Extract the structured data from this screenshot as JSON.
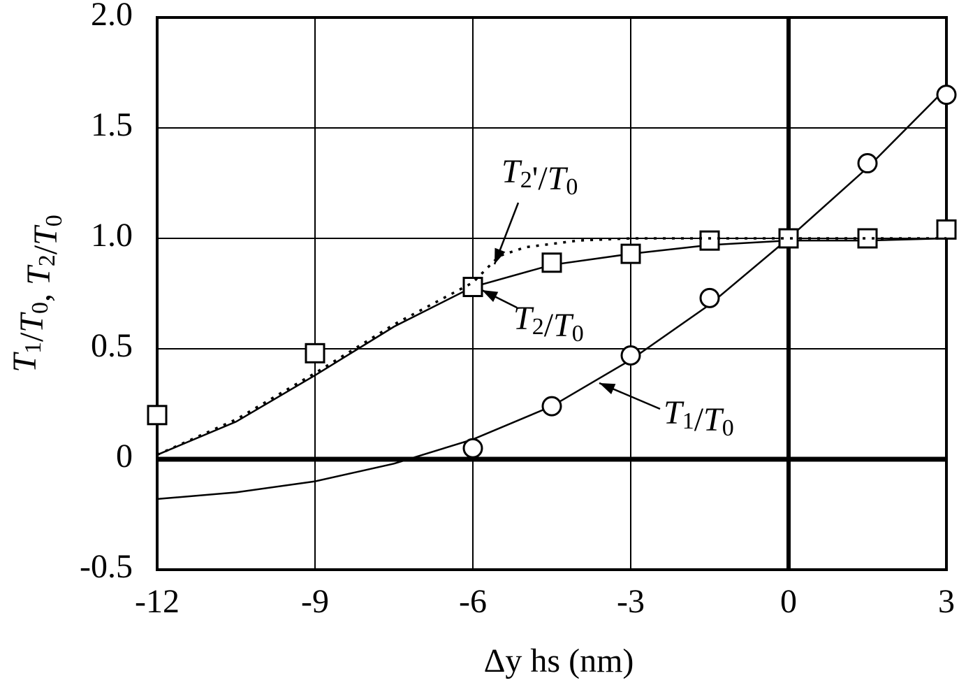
{
  "chart_data": {
    "type": "line",
    "x_label": "Δy hs (nm)",
    "y_label": "T1/T0, T2/T0",
    "xlim": [
      -12,
      3
    ],
    "xticks": [
      -12,
      -9,
      -6,
      -3,
      0,
      3
    ],
    "ylim": [
      -0.5,
      2
    ],
    "yticks": [
      -0.5,
      0,
      0.5,
      {
        "value": 1,
        "label": "1.0"
      },
      1.5,
      {
        "value": 2,
        "label": "2.0"
      }
    ],
    "grid": true,
    "series": [
      {
        "name": "T1/T0",
        "color": "#000000",
        "marker": "circle",
        "x": [
          -6,
          -4.5,
          -3,
          -1.5,
          0,
          1.5,
          3
        ],
        "values": [
          0.05,
          0.24,
          0.47,
          0.73,
          1.0,
          1.34,
          1.65
        ],
        "fit_x": [
          -12,
          -10.5,
          -9,
          -7.5,
          -6,
          -4.5,
          -3,
          -1.5,
          0,
          1.5,
          3
        ],
        "fit_values": [
          -0.18,
          -0.15,
          -0.1,
          -0.02,
          0.09,
          0.24,
          0.45,
          0.7,
          1.0,
          1.32,
          1.68
        ],
        "dash": "solid"
      },
      {
        "name": "T2/T0",
        "color": "#000000",
        "marker": "square",
        "x": [
          -12,
          -9,
          -6,
          -4.5,
          -3,
          -1.5,
          0,
          1.5,
          3
        ],
        "values": [
          0.2,
          0.48,
          0.78,
          0.89,
          0.93,
          0.99,
          1.0,
          1.0,
          1.04
        ],
        "fit_x": [
          -12,
          -10.5,
          -9,
          -7.5,
          -6,
          -4.5,
          -3,
          -1.5,
          0,
          1.5,
          3
        ],
        "fit_values": [
          0.02,
          0.17,
          0.38,
          0.6,
          0.78,
          0.88,
          0.93,
          0.97,
          0.99,
          0.99,
          1.0
        ],
        "dash": "solid"
      },
      {
        "name": "T2'/T0",
        "color": "#000000",
        "fit_x": [
          -12,
          -10.5,
          -9,
          -7.5,
          -6,
          -5.5,
          -5,
          -4,
          -3,
          0,
          3
        ],
        "fit_values": [
          0.02,
          0.18,
          0.39,
          0.61,
          0.8,
          0.92,
          0.96,
          0.99,
          1.0,
          1.0,
          1.0
        ],
        "dash": "dotted"
      }
    ]
  }
}
